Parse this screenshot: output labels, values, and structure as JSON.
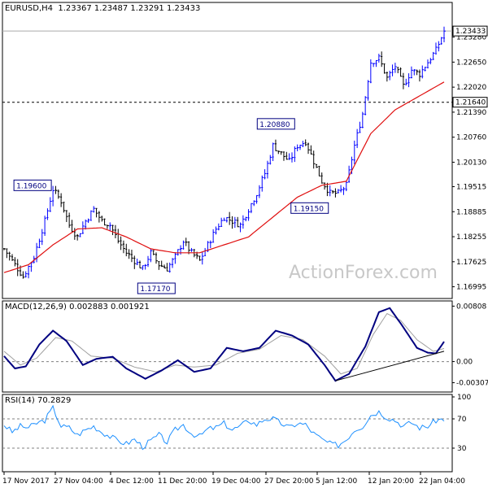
{
  "headers": {
    "price": "EURUSD,H4  1.23367 1.23487 1.23291 1.23433",
    "macd": "MACD(12,26,9) 0.002883 0.001921",
    "rsi": "RSI(14) 70.2829"
  },
  "watermark": "ActionForex.com",
  "colors": {
    "bull": "#0000ff",
    "bear": "#000000",
    "ma": "#e01010",
    "macd_line": "#000080",
    "signal_line": "#a0a0a0",
    "rsi_line": "#1e90ff",
    "grid_level": "#808080"
  },
  "chart_data": [
    {
      "type": "candlestick",
      "title": "EURUSD,H4",
      "x_tick_labels": [
        "17 Nov 2017",
        "27 Nov 04:00",
        "4 Dec 12:00",
        "11 Dec 20:00",
        "19 Dec 04:00",
        "27 Dec 20:00",
        "5 Jan 12:00",
        "12 Jan 20:00",
        "22 Jan 04:00"
      ],
      "y_tick_labels": [
        "1.23280",
        "1.22650",
        "1.22020",
        "1.21390",
        "1.20760",
        "1.20130",
        "1.19515",
        "1.18885",
        "1.18255",
        "1.17625",
        "1.16995"
      ],
      "ylim": [
        1.1672,
        1.2405
      ],
      "last_price_label": "1.23433",
      "last_price": 1.23433,
      "level_line_label": "1.21640",
      "level_line": 1.2164,
      "annotations": [
        {
          "text": "1.19600",
          "x_index": 18,
          "value": 1.196
        },
        {
          "text": "1.17170",
          "x_index": 51,
          "value": 1.1717
        },
        {
          "text": "1.20880",
          "x_index": 101,
          "value": 1.2088
        },
        {
          "text": "1.19150",
          "x_index": 120,
          "value": 1.1915
        }
      ],
      "close_path": [
        [
          0,
          1.1795
        ],
        [
          4,
          1.1755
        ],
        [
          7,
          1.1725
        ],
        [
          11,
          1.1775
        ],
        [
          15,
          1.1865
        ],
        [
          18,
          1.1945
        ],
        [
          21,
          1.1915
        ],
        [
          24,
          1.1855
        ],
        [
          27,
          1.1825
        ],
        [
          30,
          1.1865
        ],
        [
          33,
          1.1895
        ],
        [
          36,
          1.1865
        ],
        [
          39,
          1.1855
        ],
        [
          42,
          1.1815
        ],
        [
          45,
          1.1785
        ],
        [
          48,
          1.1765
        ],
        [
          51,
          1.1745
        ],
        [
          54,
          1.1785
        ],
        [
          57,
          1.1755
        ],
        [
          60,
          1.1745
        ],
        [
          63,
          1.1775
        ],
        [
          66,
          1.1815
        ],
        [
          69,
          1.1785
        ],
        [
          72,
          1.1765
        ],
        [
          75,
          1.1805
        ],
        [
          78,
          1.1845
        ],
        [
          81,
          1.1875
        ],
        [
          84,
          1.1865
        ],
        [
          87,
          1.1855
        ],
        [
          90,
          1.1895
        ],
        [
          93,
          1.1935
        ],
        [
          96,
          1.1985
        ],
        [
          99,
          1.2055
        ],
        [
          102,
          1.2035
        ],
        [
          105,
          1.2015
        ],
        [
          108,
          1.2055
        ],
        [
          111,
          1.2065
        ],
        [
          114,
          1.2015
        ],
        [
          117,
          1.1965
        ],
        [
          120,
          1.1935
        ],
        [
          123,
          1.1935
        ],
        [
          126,
          1.1955
        ],
        [
          129,
          1.2055
        ],
        [
          132,
          1.2135
        ],
        [
          135,
          1.2265
        ],
        [
          138,
          1.2275
        ],
        [
          141,
          1.2225
        ],
        [
          144,
          1.2255
        ],
        [
          147,
          1.2205
        ],
        [
          150,
          1.2245
        ],
        [
          153,
          1.2235
        ],
        [
          156,
          1.2265
        ],
        [
          159,
          1.2295
        ],
        [
          162,
          1.2343
        ]
      ],
      "ma_path": [
        [
          0,
          1.1735
        ],
        [
          9,
          1.1755
        ],
        [
          18,
          1.1805
        ],
        [
          27,
          1.1845
        ],
        [
          36,
          1.1848
        ],
        [
          45,
          1.1825
        ],
        [
          54,
          1.1795
        ],
        [
          63,
          1.1785
        ],
        [
          72,
          1.1785
        ],
        [
          81,
          1.1805
        ],
        [
          90,
          1.1825
        ],
        [
          99,
          1.1875
        ],
        [
          108,
          1.1925
        ],
        [
          117,
          1.1955
        ],
        [
          126,
          1.1965
        ],
        [
          135,
          1.2085
        ],
        [
          144,
          1.2145
        ],
        [
          153,
          1.218
        ],
        [
          162,
          1.2215
        ]
      ]
    },
    {
      "type": "line",
      "title": "MACD(12,26,9)",
      "y_tick_labels": [
        "0.00808",
        "0.00",
        "-0.003078"
      ],
      "ylim": [
        -0.0042,
        0.0086
      ],
      "series": [
        {
          "name": "MACD(12,26,9)",
          "values": [
            [
              0,
              0.0008
            ],
            [
              4,
              -0.001
            ],
            [
              8,
              -0.0007
            ],
            [
              13,
              0.0025
            ],
            [
              18,
              0.0045
            ],
            [
              23,
              0.003
            ],
            [
              29,
              -0.0005
            ],
            [
              34,
              0.0004
            ],
            [
              40,
              0.0007
            ],
            [
              45,
              -0.001
            ],
            [
              52,
              -0.0025
            ],
            [
              58,
              -0.0013
            ],
            [
              64,
              0.0002
            ],
            [
              70,
              -0.0015
            ],
            [
              76,
              -0.001
            ],
            [
              82,
              0.002
            ],
            [
              88,
              0.0015
            ],
            [
              94,
              0.002
            ],
            [
              100,
              0.0045
            ],
            [
              106,
              0.0038
            ],
            [
              112,
              0.0025
            ],
            [
              118,
              -0.0005
            ],
            [
              122,
              -0.0028
            ],
            [
              127,
              -0.0018
            ],
            [
              133,
              0.0022
            ],
            [
              138,
              0.0072
            ],
            [
              142,
              0.0078
            ],
            [
              147,
              0.005
            ],
            [
              152,
              0.002
            ],
            [
              156,
              0.0013
            ],
            [
              159,
              0.0012
            ],
            [
              162,
              0.0029
            ]
          ]
        },
        {
          "name": "signal",
          "values": [
            [
              0,
              0.0015
            ],
            [
              6,
              -0.0005
            ],
            [
              12,
              0.0005
            ],
            [
              19,
              0.0035
            ],
            [
              25,
              0.003
            ],
            [
              32,
              0.0008
            ],
            [
              40,
              0.0005
            ],
            [
              48,
              -0.0008
            ],
            [
              56,
              -0.0015
            ],
            [
              63,
              -0.0005
            ],
            [
              70,
              -0.0008
            ],
            [
              78,
              -0.0005
            ],
            [
              86,
              0.0012
            ],
            [
              94,
              0.0018
            ],
            [
              102,
              0.0038
            ],
            [
              110,
              0.0032
            ],
            [
              118,
              0.0008
            ],
            [
              124,
              -0.0018
            ],
            [
              130,
              -0.001
            ],
            [
              136,
              0.004
            ],
            [
              141,
              0.007
            ],
            [
              146,
              0.006
            ],
            [
              152,
              0.0032
            ],
            [
              158,
              0.0015
            ],
            [
              162,
              0.0019
            ]
          ]
        },
        {
          "name": "trendline",
          "values": [
            [
              122,
              -0.0028
            ],
            [
              162,
              0.0015
            ]
          ]
        }
      ]
    },
    {
      "type": "line",
      "title": "RSI(14)",
      "y_tick_labels": [
        "100",
        "70",
        "30"
      ],
      "ylim": [
        0,
        100
      ],
      "levels": [
        70,
        30
      ],
      "series": [
        {
          "name": "RSI(14)",
          "values": [
            [
              0,
              62
            ],
            [
              3,
              52
            ],
            [
              6,
              60
            ],
            [
              9,
              58
            ],
            [
              12,
              64
            ],
            [
              15,
              68
            ],
            [
              18,
              85
            ],
            [
              21,
              60
            ],
            [
              24,
              58
            ],
            [
              27,
              48
            ],
            [
              30,
              55
            ],
            [
              33,
              60
            ],
            [
              36,
              52
            ],
            [
              39,
              46
            ],
            [
              42,
              40
            ],
            [
              45,
              36
            ],
            [
              48,
              42
            ],
            [
              51,
              32
            ],
            [
              54,
              40
            ],
            [
              57,
              48
            ],
            [
              60,
              38
            ],
            [
              63,
              55
            ],
            [
              66,
              62
            ],
            [
              69,
              50
            ],
            [
              72,
              46
            ],
            [
              75,
              56
            ],
            [
              78,
              58
            ],
            [
              81,
              64
            ],
            [
              84,
              55
            ],
            [
              87,
              60
            ],
            [
              90,
              68
            ],
            [
              93,
              62
            ],
            [
              96,
              70
            ],
            [
              99,
              70
            ],
            [
              102,
              64
            ],
            [
              105,
              58
            ],
            [
              108,
              64
            ],
            [
              111,
              62
            ],
            [
              114,
              50
            ],
            [
              117,
              42
            ],
            [
              120,
              36
            ],
            [
              123,
              34
            ],
            [
              126,
              42
            ],
            [
              129,
              55
            ],
            [
              132,
              60
            ],
            [
              135,
              75
            ],
            [
              138,
              80
            ],
            [
              141,
              72
            ],
            [
              144,
              68
            ],
            [
              147,
              60
            ],
            [
              150,
              65
            ],
            [
              153,
              58
            ],
            [
              156,
              60
            ],
            [
              159,
              68
            ],
            [
              162,
              70
            ]
          ]
        }
      ]
    }
  ]
}
